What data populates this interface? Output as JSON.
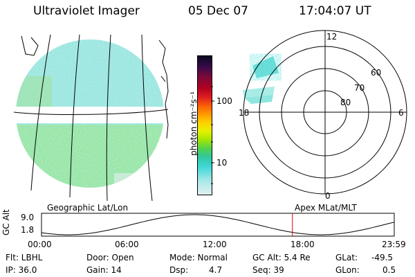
{
  "header": {
    "instrument": "Ultraviolet Imager",
    "date": "05 Dec 07",
    "time": "17:04:07 UT"
  },
  "colorbar": {
    "label": "photon cm⁻²s⁻¹",
    "ticks": [
      "100",
      "10"
    ],
    "stops": [
      "#0a0a22",
      "#3a0a4a",
      "#7a0a3a",
      "#b00020",
      "#e02020",
      "#ff6a00",
      "#ff9a00",
      "#ffd000",
      "#e8f000",
      "#a8e800",
      "#50d050",
      "#30c8a0",
      "#40d8d8",
      "#a8e8e8",
      "#e0f0f0"
    ]
  },
  "polar_plot": {
    "mlt_labels": {
      "top": "12",
      "left": "18",
      "right": "6",
      "bottom": "0"
    },
    "lat_labels": [
      "60",
      "70",
      "80"
    ]
  },
  "timeline": {
    "left_title": "Geographic Lat/Lon",
    "right_title": "Apex MLat/MLT",
    "ylabel": "GC Alt",
    "y_ticks": [
      "9.0",
      "1.8"
    ],
    "x_ticks": [
      "00:00",
      "06:00",
      "12:00",
      "18:00",
      "23:59"
    ],
    "current_time_hours": 17.07,
    "marker_color": "#e00000"
  },
  "info": {
    "filter": "Flt: LBHL",
    "ip": "IP: 36.0",
    "door": "Door: Open",
    "gain": "Gain: 14",
    "mode": "Mode: Normal",
    "dsp_label": "Dsp:",
    "dsp_value": "4.7",
    "gc_alt": "GC Alt: 5.4 Re",
    "seq": "Seq: 39",
    "glat_label": "GLat:",
    "glat_value": "-49.5",
    "glon_label": "GLon:",
    "glon_value": "0.5"
  }
}
